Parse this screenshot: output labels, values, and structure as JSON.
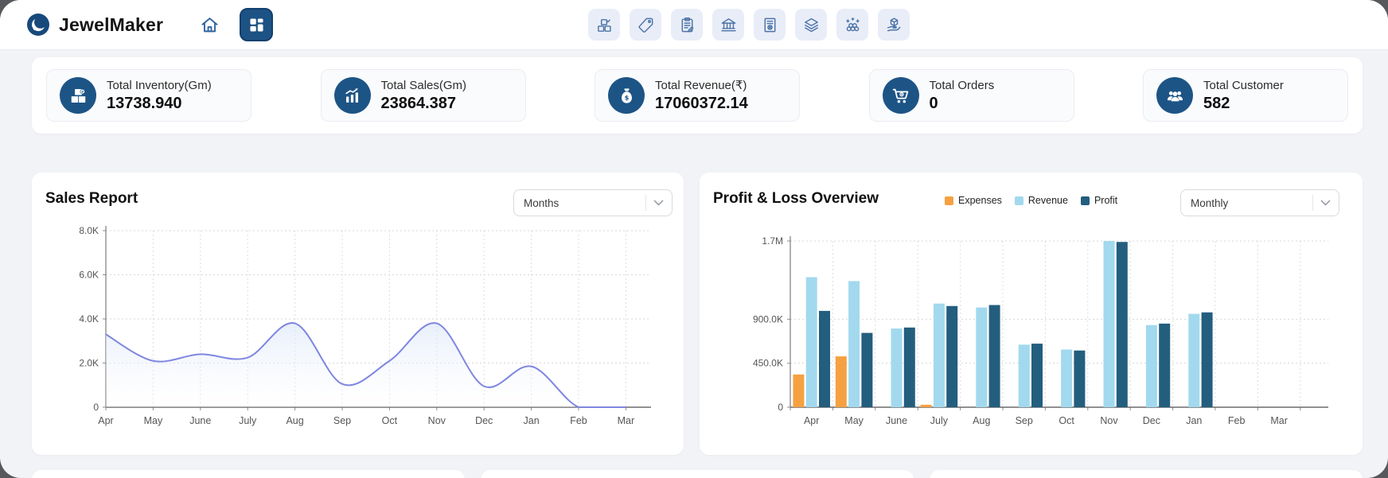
{
  "brand": {
    "name": "JewelMaker",
    "color": "#17497c"
  },
  "topbar": {
    "home_icon": "home-icon",
    "dashboard_icon": "dashboard-grid-icon",
    "toolbar": [
      {
        "icon": "inventory-check-icon"
      },
      {
        "icon": "price-tag-icon"
      },
      {
        "icon": "clipboard-icon"
      },
      {
        "icon": "bank-icon"
      },
      {
        "icon": "invoice-icon"
      },
      {
        "icon": "layers-icon"
      },
      {
        "icon": "gold-stack-icon"
      },
      {
        "icon": "delivery-hand-icon"
      }
    ]
  },
  "stats": [
    {
      "label": "Total Inventory(Gm)",
      "value": "13738.940",
      "icon": "inventory-boxes-icon"
    },
    {
      "label": "Total Sales(Gm)",
      "value": "23864.387",
      "icon": "sales-chart-icon"
    },
    {
      "label": "Total Revenue(₹)",
      "value": "17060372.14",
      "icon": "money-bag-icon"
    },
    {
      "label": "Total Orders",
      "value": "0",
      "icon": "cart-icon"
    },
    {
      "label": "Total Customer",
      "value": "582",
      "icon": "customers-icon"
    }
  ],
  "panels": {
    "sales": {
      "title": "Sales Report",
      "dropdown_value": "Months"
    },
    "profit_loss": {
      "title": "Profit & Loss Overview",
      "dropdown_value": "Monthly"
    }
  },
  "chart_data": [
    {
      "id": "sales_report",
      "type": "area",
      "title": "Sales Report",
      "x": [
        "Apr",
        "May",
        "June",
        "July",
        "Aug",
        "Sep",
        "Oct",
        "Nov",
        "Dec",
        "Jan",
        "Feb",
        "Mar"
      ],
      "values": [
        3300,
        2100,
        2400,
        2250,
        3800,
        1050,
        2100,
        3800,
        950,
        1850,
        0,
        0
      ],
      "xlabel": "",
      "ylabel": "",
      "ylim": [
        0,
        8000
      ],
      "yticks": [
        {
          "v": 0,
          "label": "0"
        },
        {
          "v": 2000,
          "label": "2.0K"
        },
        {
          "v": 4000,
          "label": "4.0K"
        },
        {
          "v": 6000,
          "label": "6.0K"
        },
        {
          "v": 8000,
          "label": "8.0K"
        }
      ],
      "grid": true,
      "line_color": "#7f86e0",
      "fill_gradient": [
        "#adc6f0",
        "#ffffff"
      ]
    },
    {
      "id": "profit_loss",
      "type": "bar",
      "title": "Profit & Loss Overview",
      "categories": [
        "Apr",
        "May",
        "June",
        "July",
        "Aug",
        "Sep",
        "Oct",
        "Nov",
        "Dec",
        "Jan",
        "Feb",
        "Mar"
      ],
      "series": [
        {
          "name": "Expenses",
          "color": "#f5a142",
          "values": [
            335000,
            520000,
            0,
            25000,
            0,
            0,
            0,
            0,
            0,
            0,
            0,
            0
          ]
        },
        {
          "name": "Revenue",
          "color": "#a2d9ee",
          "values": [
            1330000,
            1290000,
            805000,
            1060000,
            1020000,
            640000,
            590000,
            1700000,
            840000,
            955000,
            0,
            0
          ]
        },
        {
          "name": "Profit",
          "color": "#235e7e",
          "values": [
            985000,
            760000,
            815000,
            1035000,
            1045000,
            650000,
            580000,
            1690000,
            855000,
            970000,
            0,
            0
          ]
        }
      ],
      "xlabel": "",
      "ylabel": "",
      "ylim": [
        0,
        1700000
      ],
      "yticks": [
        {
          "v": 0,
          "label": "0"
        },
        {
          "v": 450000,
          "label": "450.0K"
        },
        {
          "v": 900000,
          "label": "900.0K"
        },
        {
          "v": 1700000,
          "label": "1.7M"
        }
      ],
      "grid": true,
      "legend_position": "top"
    }
  ]
}
